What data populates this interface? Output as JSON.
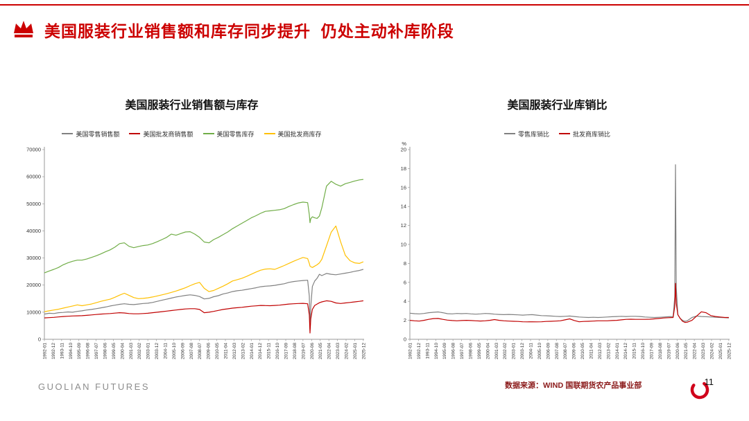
{
  "colors": {
    "accent": "#cc0000",
    "title_red": "#cc0000",
    "brand_gray": "#8c8c8c",
    "source_text": "#8b1a1a",
    "page_arc": "#d0021b"
  },
  "header": {
    "title": "美国服装行业销售额和库存同步提升  仍处主动补库阶段"
  },
  "chart_data": [
    {
      "type": "line",
      "title": "美国服装行业销售额与库存",
      "xlabel": "",
      "ylabel": "",
      "grid": false,
      "legend_position": "top",
      "xlim": [
        1992,
        2026
      ],
      "ylim": [
        0,
        70000
      ],
      "ytick_step": 10000,
      "x_tick_labels": [
        "1992-01",
        "1992-12",
        "1993-11",
        "1994-10",
        "1995-09",
        "1996-08",
        "1997-07",
        "1998-06",
        "1999-05",
        "2000-04",
        "2001-03",
        "2002-02",
        "2003-01",
        "2003-12",
        "2004-11",
        "2005-10",
        "2006-09",
        "2007-08",
        "2008-07",
        "2009-06",
        "2010-05",
        "2011-04",
        "2012-03",
        "2013-02",
        "2014-01",
        "2014-12",
        "2015-11",
        "2016-10",
        "2017-09",
        "2018-08",
        "2019-07",
        "2020-06",
        "2021-05",
        "2022-04",
        "2023-03",
        "2024-02",
        "2025-01",
        "2025-12"
      ],
      "x": [
        1992,
        1992.5,
        1993,
        1993.5,
        1994,
        1994.5,
        1995,
        1995.5,
        1996,
        1996.5,
        1997,
        1997.5,
        1998,
        1998.5,
        1999,
        1999.5,
        2000,
        2000.5,
        2001,
        2001.5,
        2002,
        2002.5,
        2003,
        2003.5,
        2004,
        2004.5,
        2005,
        2005.5,
        2006,
        2006.5,
        2007,
        2007.5,
        2008,
        2008.5,
        2009,
        2009.5,
        2010,
        2010.5,
        2011,
        2011.5,
        2012,
        2012.5,
        2013,
        2013.5,
        2014,
        2014.5,
        2015,
        2015.5,
        2016,
        2016.5,
        2017,
        2017.5,
        2018,
        2018.5,
        2019,
        2019.5,
        2020,
        2020.17,
        2020.25,
        2020.33,
        2020.5,
        2020.75,
        2021,
        2021.25,
        2021.5,
        2022,
        2022.5,
        2023,
        2023.5,
        2024,
        2024.5,
        2025,
        2025.5,
        2025.92
      ],
      "series": [
        {
          "name": "美国零售销售额",
          "color": "#808080",
          "values": [
            9300,
            9600,
            9500,
            9800,
            9900,
            10100,
            10000,
            10300,
            10500,
            10800,
            11000,
            11300,
            11600,
            11900,
            12300,
            12600,
            12900,
            13100,
            12900,
            12800,
            13000,
            13200,
            13300,
            13600,
            14000,
            14400,
            14800,
            15200,
            15600,
            15900,
            16200,
            16400,
            16200,
            15800,
            14900,
            15100,
            15700,
            16100,
            16700,
            17100,
            17600,
            17900,
            18100,
            18400,
            18700,
            19000,
            19400,
            19600,
            19700,
            19900,
            20200,
            20500,
            21000,
            21300,
            21500,
            21700,
            21800,
            16000,
            3500,
            12000,
            19500,
            21500,
            22500,
            24000,
            23500,
            24300,
            24000,
            23800,
            24100,
            24400,
            24700,
            25100,
            25400,
            25800
          ]
        },
        {
          "name": "美国批发商销售额",
          "color": "#c00000",
          "values": [
            7900,
            8000,
            8100,
            8250,
            8400,
            8500,
            8600,
            8650,
            8700,
            8850,
            9000,
            9150,
            9300,
            9400,
            9500,
            9650,
            9800,
            9700,
            9500,
            9400,
            9400,
            9500,
            9600,
            9800,
            10000,
            10200,
            10400,
            10600,
            10800,
            11000,
            11200,
            11300,
            11300,
            11000,
            9800,
            10000,
            10300,
            10650,
            11000,
            11250,
            11500,
            11650,
            11800,
            12000,
            12200,
            12350,
            12500,
            12450,
            12400,
            12500,
            12600,
            12800,
            13000,
            13100,
            13200,
            13250,
            13100,
            9000,
            2300,
            7500,
            11000,
            12500,
            13000,
            13500,
            13800,
            14200,
            14000,
            13400,
            13200,
            13400,
            13600,
            13800,
            14000,
            14200
          ]
        },
        {
          "name": "美国零售库存",
          "color": "#70ad47",
          "values": [
            24500,
            25200,
            25800,
            26500,
            27500,
            28200,
            28800,
            29200,
            29200,
            29600,
            30200,
            30800,
            31500,
            32300,
            33000,
            34000,
            35300,
            35600,
            34300,
            33800,
            34200,
            34600,
            34800,
            35300,
            36000,
            36800,
            37600,
            38800,
            38400,
            39000,
            39600,
            39700,
            38800,
            37600,
            35900,
            35600,
            36800,
            37600,
            38600,
            39600,
            40800,
            41800,
            42800,
            43800,
            44800,
            45600,
            46500,
            47200,
            47400,
            47600,
            47800,
            48200,
            49000,
            49700,
            50300,
            50600,
            50400,
            46000,
            43000,
            44500,
            45200,
            44800,
            44600,
            45500,
            48500,
            56500,
            58300,
            57200,
            56500,
            57400,
            57900,
            58400,
            58800,
            59000
          ]
        },
        {
          "name": "美国批发商库存",
          "color": "#ffc000",
          "values": [
            10200,
            10500,
            10800,
            11100,
            11500,
            11900,
            12300,
            12700,
            12400,
            12700,
            13000,
            13500,
            14000,
            14400,
            14800,
            15500,
            16300,
            17000,
            16200,
            15400,
            15000,
            15100,
            15300,
            15600,
            16000,
            16400,
            16800,
            17300,
            17800,
            18400,
            19000,
            19800,
            20500,
            21000,
            18800,
            17600,
            18000,
            18800,
            19600,
            20500,
            21500,
            22000,
            22500,
            23200,
            24000,
            24800,
            25500,
            25900,
            26000,
            25800,
            26500,
            27200,
            28000,
            28800,
            29500,
            30200,
            29800,
            28000,
            27000,
            26800,
            26500,
            27000,
            27500,
            28200,
            29500,
            34500,
            39500,
            41800,
            36000,
            31000,
            29000,
            28200,
            28000,
            28600
          ]
        }
      ]
    },
    {
      "type": "line",
      "title": "美国服装行业库销比",
      "xlabel": "",
      "ylabel": "%",
      "grid": false,
      "legend_position": "top",
      "xlim": [
        1992,
        2026
      ],
      "ylim": [
        0,
        20
      ],
      "ytick_step": 2,
      "x_tick_labels": [
        "1992-01",
        "1992-12",
        "1993-11",
        "1994-10",
        "1995-09",
        "1996-08",
        "1997-07",
        "1998-06",
        "1999-05",
        "2000-04",
        "2001-03",
        "2002-02",
        "2003-01",
        "2003-12",
        "2004-11",
        "2005-10",
        "2006-09",
        "2007-08",
        "2008-07",
        "2009-06",
        "2010-05",
        "2011-04",
        "2012-03",
        "2013-02",
        "2014-01",
        "2014-12",
        "2015-11",
        "2016-10",
        "2017-09",
        "2018-08",
        "2019-07",
        "2020-06",
        "2021-05",
        "2022-04",
        "2023-03",
        "2024-02",
        "2025-01",
        "2025-12"
      ],
      "x": [
        1992,
        1992.5,
        1993,
        1993.5,
        1994,
        1994.5,
        1995,
        1995.5,
        1996,
        1996.5,
        1997,
        1997.5,
        1998,
        1998.5,
        1999,
        1999.5,
        2000,
        2000.5,
        2001,
        2001.5,
        2002,
        2002.5,
        2003,
        2003.5,
        2004,
        2004.5,
        2005,
        2005.5,
        2006,
        2006.5,
        2007,
        2007.5,
        2008,
        2008.5,
        2009,
        2009.5,
        2010,
        2010.5,
        2011,
        2011.5,
        2012,
        2012.5,
        2013,
        2013.5,
        2014,
        2014.5,
        2015,
        2015.5,
        2016,
        2016.5,
        2017,
        2017.5,
        2018,
        2018.5,
        2019,
        2019.5,
        2020,
        2020.17,
        2020.25,
        2020.33,
        2020.5,
        2020.75,
        2021,
        2021.25,
        2021.5,
        2022,
        2022.5,
        2023,
        2023.5,
        2024,
        2024.5,
        2025,
        2025.5,
        2025.92
      ],
      "series": [
        {
          "name": "零售库销比",
          "color": "#808080",
          "values": [
            2.75,
            2.7,
            2.68,
            2.72,
            2.8,
            2.85,
            2.88,
            2.8,
            2.7,
            2.68,
            2.72,
            2.7,
            2.72,
            2.68,
            2.65,
            2.68,
            2.72,
            2.7,
            2.65,
            2.62,
            2.6,
            2.62,
            2.6,
            2.58,
            2.55,
            2.58,
            2.6,
            2.55,
            2.5,
            2.48,
            2.45,
            2.42,
            2.4,
            2.42,
            2.45,
            2.4,
            2.35,
            2.32,
            2.3,
            2.32,
            2.3,
            2.32,
            2.35,
            2.38,
            2.4,
            2.42,
            2.4,
            2.42,
            2.42,
            2.4,
            2.35,
            2.32,
            2.3,
            2.32,
            2.35,
            2.38,
            2.4,
            4.5,
            18.4,
            5.5,
            2.6,
            2.2,
            2.0,
            1.9,
            1.95,
            2.3,
            2.45,
            2.4,
            2.38,
            2.35,
            2.32,
            2.3,
            2.28,
            2.25
          ]
        },
        {
          "name": "批发商库销比",
          "color": "#c00000",
          "values": [
            2.0,
            1.95,
            1.92,
            2.0,
            2.1,
            2.18,
            2.2,
            2.1,
            2.02,
            1.98,
            1.95,
            1.98,
            2.0,
            1.98,
            1.95,
            1.93,
            1.95,
            2.0,
            2.08,
            2.0,
            1.95,
            1.92,
            1.9,
            1.88,
            1.85,
            1.84,
            1.85,
            1.84,
            1.85,
            1.88,
            1.9,
            1.92,
            1.95,
            2.05,
            2.15,
            1.98,
            1.85,
            1.88,
            1.9,
            1.92,
            1.95,
            1.95,
            1.95,
            1.98,
            2.0,
            2.05,
            2.1,
            2.12,
            2.1,
            2.1,
            2.1,
            2.12,
            2.15,
            2.2,
            2.25,
            2.28,
            2.3,
            3.5,
            5.9,
            3.8,
            2.6,
            2.2,
            1.9,
            1.78,
            1.8,
            2.0,
            2.45,
            2.9,
            2.8,
            2.5,
            2.4,
            2.35,
            2.3,
            2.3
          ]
        }
      ]
    }
  ],
  "footer": {
    "brand": "GUOLIAN FUTURES",
    "source": "数据来源：WIND 国联期货农产品事业部",
    "page": "11"
  }
}
